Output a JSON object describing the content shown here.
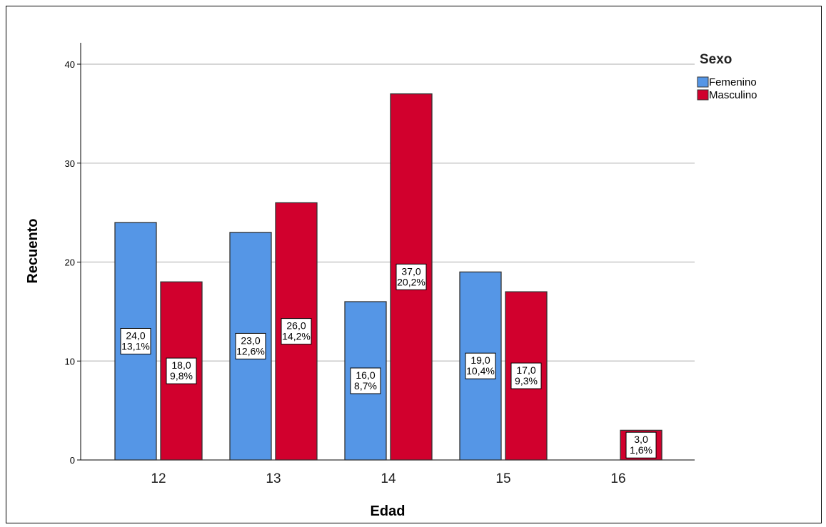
{
  "chart_data": {
    "type": "bar",
    "xlabel": "Edad",
    "ylabel": "Recuento",
    "categories": [
      "12",
      "13",
      "14",
      "15",
      "16"
    ],
    "ylim": [
      0,
      42
    ],
    "yticks": [
      0,
      10,
      20,
      30,
      40
    ],
    "grid": true,
    "legend": {
      "title": "Sexo",
      "position": "top-right"
    },
    "series": [
      {
        "name": "Femenino",
        "color": "#5596e6",
        "values": [
          24,
          23,
          16,
          19,
          null
        ],
        "labels": [
          [
            "24,0",
            "13,1%"
          ],
          [
            "23,0",
            "12,6%"
          ],
          [
            "16,0",
            "8,7%"
          ],
          [
            "19,0",
            "10,4%"
          ],
          null
        ]
      },
      {
        "name": "Masculino",
        "color": "#d1002d",
        "values": [
          18,
          26,
          37,
          17,
          3
        ],
        "labels": [
          [
            "18,0",
            "9,8%"
          ],
          [
            "26,0",
            "14,2%"
          ],
          [
            "37,0",
            "20,2%"
          ],
          [
            "17,0",
            "9,3%"
          ],
          [
            "3,0",
            "1,6%"
          ]
        ]
      }
    ]
  }
}
